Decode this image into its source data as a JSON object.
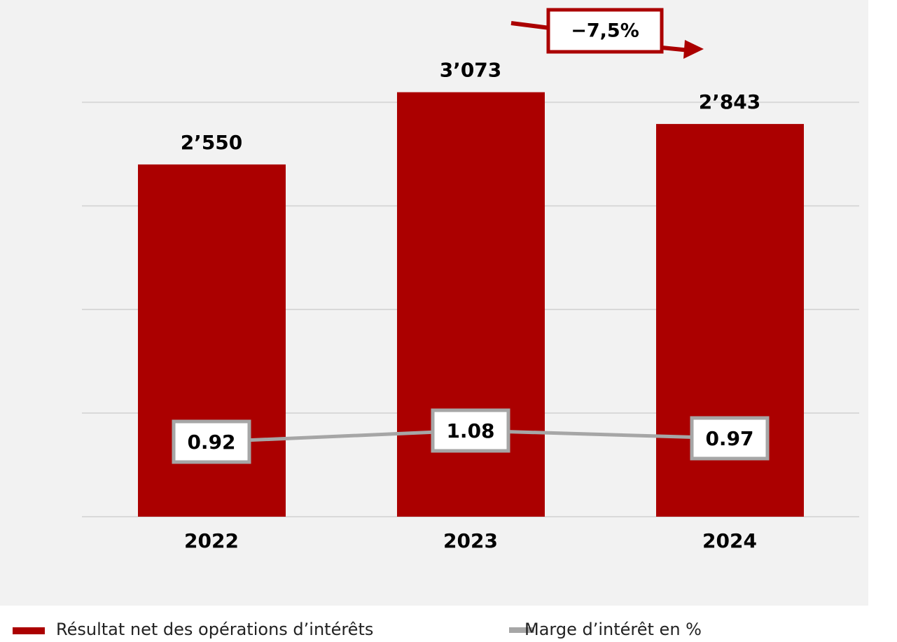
{
  "chart_data": {
    "type": "bar+line",
    "categories": [
      "2022",
      "2023",
      "2024"
    ],
    "series": [
      {
        "name": "Résultat net des opérations d’intérêts",
        "type": "bar",
        "color": "#ab0000",
        "values": [
          2550,
          3073,
          2843
        ],
        "value_labels": [
          "2’550",
          "3’073",
          "2’843"
        ]
      },
      {
        "name": "Marge d’intérêt en %",
        "type": "line",
        "axis": "y2",
        "color": "#a6a6a6",
        "values": [
          0.92,
          1.08,
          0.97
        ]
      }
    ],
    "ylim": [
      0,
      3700
    ],
    "yticks": [
      0,
      750,
      1500,
      2250,
      3000
    ],
    "y2lim": [
      -0.15,
      7.15
    ],
    "grid": true,
    "annotation": "−7,5%"
  }
}
